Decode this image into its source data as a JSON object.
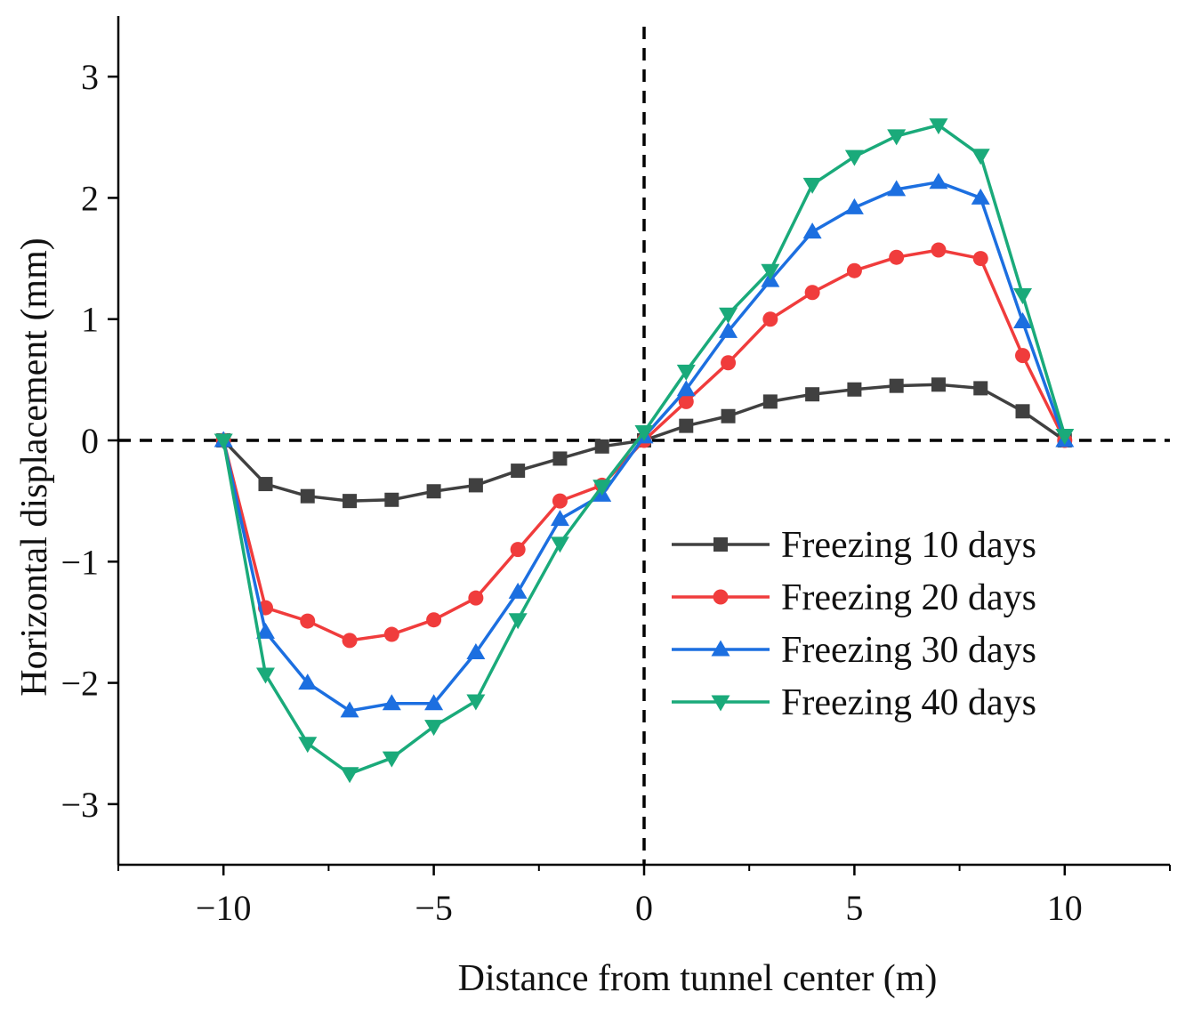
{
  "chart_data": {
    "type": "line",
    "title": "",
    "xlabel": "Distance from tunnel center (m)",
    "ylabel": "Horizontal displacement (mm)",
    "xlim": [
      -12.5,
      12.5
    ],
    "ylim": [
      -3.5,
      3.5
    ],
    "x_ticks": [
      -10,
      -5,
      0,
      5,
      10
    ],
    "x_tick_labels": [
      "−10",
      "−5",
      "0",
      "5",
      "10"
    ],
    "y_ticks": [
      -3,
      -2,
      -1,
      0,
      1,
      2,
      3
    ],
    "y_tick_labels": [
      "−3",
      "−2",
      "−1",
      "0",
      "1",
      "2",
      "3"
    ],
    "reference_lines": {
      "x": 0,
      "y": 0,
      "style": "dashed"
    },
    "legend_position": "center-right",
    "grid": false,
    "x": [
      -10,
      -9,
      -8,
      -7,
      -6,
      -5,
      -4,
      -3,
      -2,
      -1,
      0,
      1,
      2,
      3,
      4,
      5,
      6,
      7,
      8,
      9,
      10
    ],
    "series": [
      {
        "name": "Freezing 10 days",
        "color": "#404040",
        "marker": "square",
        "values": [
          0,
          -0.36,
          -0.46,
          -0.5,
          -0.49,
          -0.42,
          -0.37,
          -0.25,
          -0.15,
          -0.05,
          0,
          0.12,
          0.2,
          0.32,
          0.38,
          0.42,
          0.45,
          0.46,
          0.43,
          0.24,
          0
        ]
      },
      {
        "name": "Freezing 20 days",
        "color": "#f03c3c",
        "marker": "circle",
        "values": [
          0,
          -1.38,
          -1.49,
          -1.65,
          -1.6,
          -1.48,
          -1.3,
          -0.9,
          -0.5,
          -0.37,
          0,
          0.32,
          0.64,
          1.0,
          1.22,
          1.4,
          1.51,
          1.57,
          1.5,
          0.7,
          0
        ]
      },
      {
        "name": "Freezing 30 days",
        "color": "#1c6fe0",
        "marker": "triangle-up",
        "values": [
          0,
          -1.58,
          -2.0,
          -2.23,
          -2.17,
          -2.17,
          -1.75,
          -1.25,
          -0.65,
          -0.45,
          0.03,
          0.42,
          0.9,
          1.32,
          1.72,
          1.92,
          2.07,
          2.13,
          2.0,
          0.98,
          0
        ]
      },
      {
        "name": "Freezing 40 days",
        "color": "#1aaa7a",
        "marker": "triangle-down",
        "values": [
          0,
          -1.93,
          -2.5,
          -2.75,
          -2.62,
          -2.36,
          -2.15,
          -1.48,
          -0.85,
          -0.38,
          0.07,
          0.57,
          1.04,
          1.4,
          2.11,
          2.34,
          2.51,
          2.6,
          2.35,
          1.2,
          0.04
        ]
      }
    ]
  }
}
